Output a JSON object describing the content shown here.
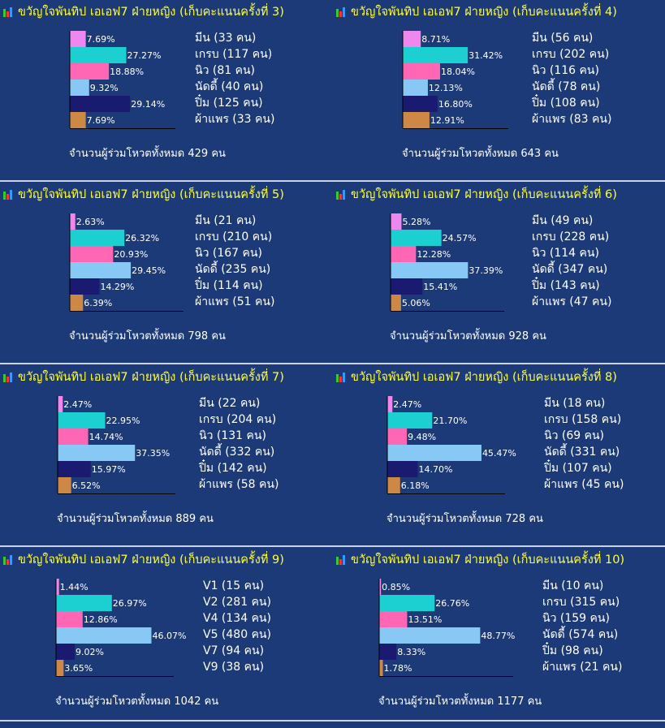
{
  "colors": [
    "#ee88ee",
    "#1ccfd0",
    "#ff66b3",
    "#88c8f5",
    "#1a1a70",
    "#cc8844"
  ],
  "total_prefix": "จำนวนผู้ร่วมโหวตทั้งหมด",
  "chart_data": [
    {
      "type": "bar",
      "title": "ขวัญใจพันทิป เอเอฟ7 ฝ่ายหญิง (เก็บคะแนนครั้งที่ 3)",
      "values": [
        7.69,
        27.27,
        18.88,
        9.32,
        29.14,
        7.69
      ],
      "labels": [
        "7.69%",
        "27.27%",
        "18.88%",
        "9.32%",
        "29.14%",
        "7.69%"
      ],
      "legend": [
        "มีน (33 คน)",
        "เกรบ (117 คน)",
        "นิว (81 คน)",
        "นัดดี้ (40 คน)",
        "ปิ๋ม (125 คน)",
        "ผ้าแพร (33 คน)"
      ],
      "total": "429 คน"
    },
    {
      "type": "bar",
      "title": "ขวัญใจพันทิป เอเอฟ7 ฝ่ายหญิง (เก็บคะแนนครั้งที่ 4)",
      "values": [
        8.71,
        31.42,
        18.04,
        12.13,
        16.8,
        12.91
      ],
      "labels": [
        "8.71%",
        "31.42%",
        "18.04%",
        "12.13%",
        "16.80%",
        "12.91%"
      ],
      "legend": [
        "มีน (56 คน)",
        "เกรบ (202 คน)",
        "นิว (116 คน)",
        "นัดดี้ (78 คน)",
        "ปิ๋ม (108 คน)",
        "ผ้าแพร (83 คน)"
      ],
      "total": "643 คน"
    },
    {
      "type": "bar",
      "title": "ขวัญใจพันทิป เอเอฟ7 ฝ่ายหญิง (เก็บคะแนนครั้งที่ 5)",
      "values": [
        2.63,
        26.32,
        20.93,
        29.45,
        14.29,
        6.39
      ],
      "labels": [
        "2.63%",
        "26.32%",
        "20.93%",
        "29.45%",
        "14.29%",
        "6.39%"
      ],
      "legend": [
        "มีน (21 คน)",
        "เกรบ (210 คน)",
        "นิว (167 คน)",
        "นัดดี้ (235 คน)",
        "ปิ๋ม (114 คน)",
        "ผ้าแพร (51 คน)"
      ],
      "total": "798 คน"
    },
    {
      "type": "bar",
      "title": "ขวัญใจพันทิป เอเอฟ7 ฝ่ายหญิง (เก็บคะแนนครั้งที่ 6)",
      "values": [
        5.28,
        24.57,
        12.28,
        37.39,
        15.41,
        5.06
      ],
      "labels": [
        "5.28%",
        "24.57%",
        "12.28%",
        "37.39%",
        "15.41%",
        "5.06%"
      ],
      "legend": [
        "มีน (49 คน)",
        "เกรบ (228 คน)",
        "นิว (114 คน)",
        "นัดดี้ (347 คน)",
        "ปิ๋ม (143 คน)",
        "ผ้าแพร (47 คน)"
      ],
      "total": "928 คน"
    },
    {
      "type": "bar",
      "title": "ขวัญใจพันทิป เอเอฟ7 ฝ่ายหญิง (เก็บคะแนนครั้งที่ 7)",
      "values": [
        2.47,
        22.95,
        14.74,
        37.35,
        15.97,
        6.52
      ],
      "labels": [
        "2.47%",
        "22.95%",
        "14.74%",
        "37.35%",
        "15.97%",
        "6.52%"
      ],
      "legend": [
        "มีน (22 คน)",
        "เกรบ (204 คน)",
        "นิว (131 คน)",
        "นัดดี้ (332 คน)",
        "ปิ๋ม (142 คน)",
        "ผ้าแพร (58 คน)"
      ],
      "total": "889 คน"
    },
    {
      "type": "bar",
      "title": "ขวัญใจพันทิป เอเอฟ7 ฝ่ายหญิง (เก็บคะแนนครั้งที่ 8)",
      "values": [
        2.47,
        21.7,
        9.48,
        45.47,
        14.7,
        6.18
      ],
      "labels": [
        "2.47%",
        "21.70%",
        "9.48%",
        "45.47%",
        "14.70%",
        "6.18%"
      ],
      "legend": [
        "มีน (18 คน)",
        "เกรบ (158 คน)",
        "นิว (69 คน)",
        "นัดดี้ (331 คน)",
        "ปิ๋ม (107 คน)",
        "ผ้าแพร (45 คน)"
      ],
      "total": "728 คน"
    },
    {
      "type": "bar",
      "title": "ขวัญใจพันทิป เอเอฟ7 ฝ่ายหญิง (เก็บคะแนนครั้งที่ 9)",
      "values": [
        1.44,
        26.97,
        12.86,
        46.07,
        9.02,
        3.65
      ],
      "labels": [
        "1.44%",
        "26.97%",
        "12.86%",
        "46.07%",
        "9.02%",
        "3.65%"
      ],
      "legend": [
        "V1 (15 คน)",
        "V2 (281 คน)",
        "V4 (134 คน)",
        "V5 (480 คน)",
        "V7 (94 คน)",
        "V9 (38 คน)"
      ],
      "total": "1042 คน"
    },
    {
      "type": "bar",
      "title": "ขวัญใจพันทิป เอเอฟ7 ฝ่ายหญิง (เก็บคะแนนครั้งที่ 10)",
      "values": [
        0.85,
        26.76,
        13.51,
        48.77,
        8.33,
        1.78
      ],
      "labels": [
        "0.85%",
        "26.76%",
        "13.51%",
        "48.77%",
        "8.33%",
        "1.78%"
      ],
      "legend": [
        "มีน (10 คน)",
        "เกรบ (315 คน)",
        "นิว (159 คน)",
        "นัดดี้ (574 คน)",
        "ปิ๋ม (98 คน)",
        "ผ้าแพร (21 คน)"
      ],
      "total": "1177 คน"
    }
  ]
}
